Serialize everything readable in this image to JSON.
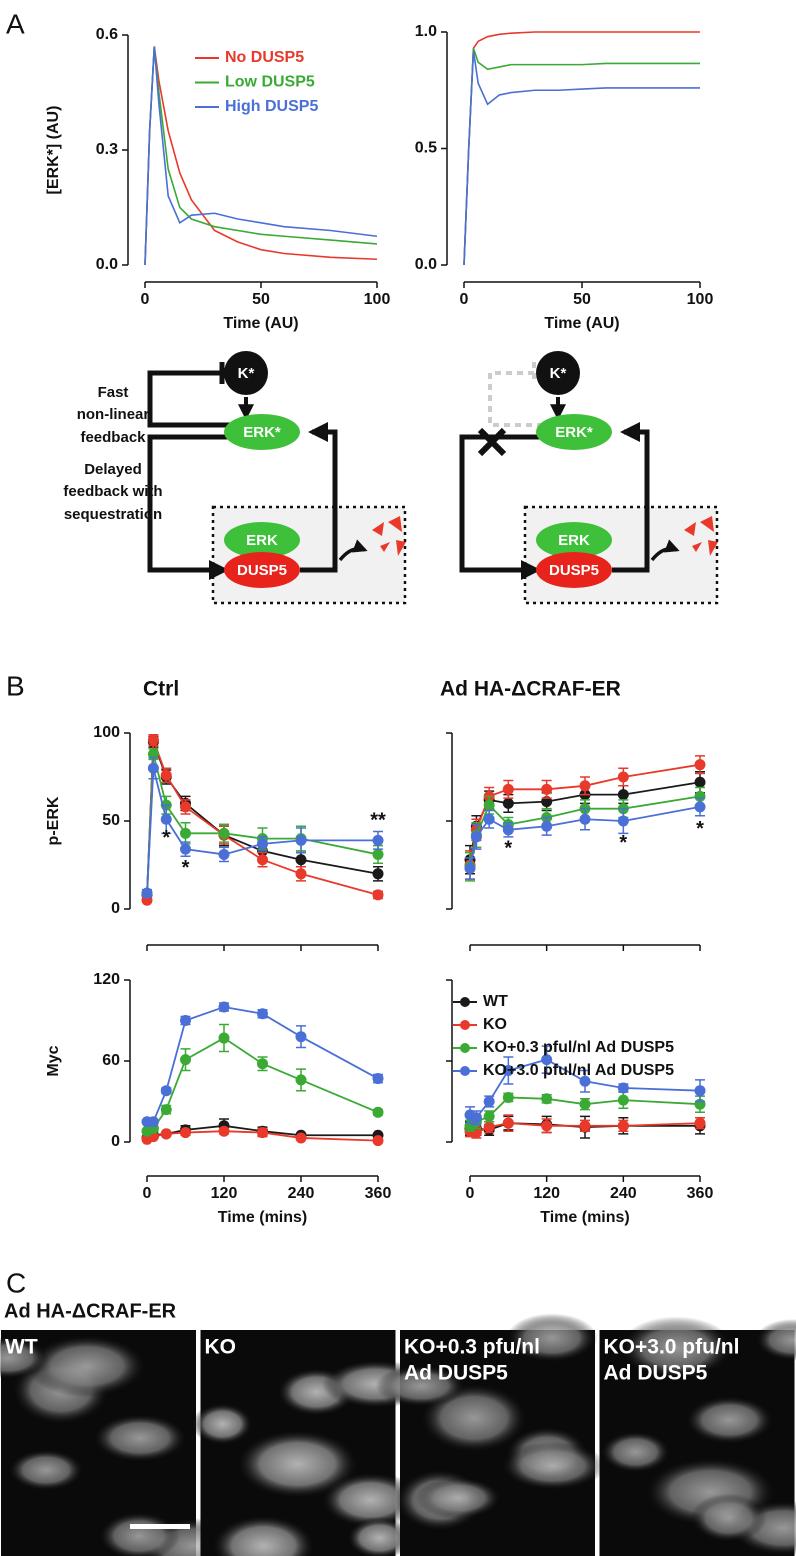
{
  "panels": {
    "a": "A",
    "b": "B",
    "c": "C"
  },
  "chart_data": [
    {
      "type": "line",
      "ylabel": "[ERK*] (AU)",
      "xlabel": "Time (AU)",
      "legend": "upper right",
      "x": [
        0,
        2,
        4,
        6,
        10,
        15,
        20,
        30,
        40,
        50,
        60,
        80,
        100
      ],
      "series": [
        {
          "name": "No DUSP5",
          "color": "#e8392a",
          "values": [
            0,
            0.35,
            0.57,
            0.48,
            0.35,
            0.24,
            0.17,
            0.09,
            0.06,
            0.04,
            0.03,
            0.02,
            0.015
          ]
        },
        {
          "name": "Low DUSP5",
          "color": "#3aaa35",
          "values": [
            0,
            0.35,
            0.57,
            0.45,
            0.25,
            0.15,
            0.12,
            0.1,
            0.09,
            0.08,
            0.075,
            0.065,
            0.055
          ]
        },
        {
          "name": "High DUSP5",
          "color": "#4a6fd6",
          "values": [
            0,
            0.35,
            0.57,
            0.42,
            0.18,
            0.11,
            0.13,
            0.135,
            0.12,
            0.11,
            0.1,
            0.09,
            0.075
          ]
        }
      ],
      "xlim": [
        0,
        100
      ],
      "xticks": [
        0,
        50,
        100
      ],
      "ylim": [
        0,
        0.6
      ],
      "yticks": [
        {
          "value": 0,
          "label": "0.0"
        },
        0.3,
        0.6
      ]
    },
    {
      "type": "line",
      "xlabel": "Time (AU)",
      "x": [
        0,
        2,
        4,
        6,
        10,
        15,
        20,
        30,
        40,
        50,
        60,
        80,
        100
      ],
      "series": [
        {
          "color": "#e8392a",
          "values": [
            0,
            0.5,
            0.93,
            0.96,
            0.98,
            0.99,
            0.995,
            1,
            1,
            1,
            1,
            1,
            1
          ]
        },
        {
          "color": "#3aaa35",
          "values": [
            0,
            0.5,
            0.93,
            0.87,
            0.84,
            0.85,
            0.86,
            0.86,
            0.86,
            0.86,
            0.865,
            0.865,
            0.865
          ]
        },
        {
          "color": "#4a6fd6",
          "values": [
            0,
            0.5,
            0.92,
            0.78,
            0.69,
            0.73,
            0.74,
            0.75,
            0.75,
            0.755,
            0.76,
            0.76,
            0.76
          ]
        }
      ],
      "xlim": [
        0,
        100
      ],
      "xticks": [
        0,
        50,
        100
      ],
      "ylim": [
        0,
        1
      ],
      "yticks": [
        {
          "value": 0,
          "label": "0.0"
        },
        0.5,
        {
          "value": 1,
          "label": "1.0"
        }
      ]
    },
    {
      "type": "line",
      "title": "Ctrl",
      "ylabel": "p-ERK",
      "markers": true,
      "xtick_labels": false,
      "x": [
        0,
        10,
        30,
        60,
        120,
        180,
        240,
        360
      ],
      "series": [
        {
          "color": "#1a1a1a",
          "values": [
            8,
            95,
            75,
            60,
            42,
            33,
            28,
            20
          ],
          "errors": [
            1,
            3,
            4,
            4,
            6,
            4,
            4,
            4
          ]
        },
        {
          "color": "#e8392a",
          "values": [
            5,
            96,
            76,
            58,
            42,
            28,
            20,
            8
          ],
          "errors": [
            1,
            3,
            4,
            4,
            5,
            4,
            4,
            2
          ]
        },
        {
          "color": "#3aaa35",
          "values": [
            9,
            88,
            59,
            43,
            43,
            40,
            40,
            31
          ],
          "errors": [
            1,
            3,
            5,
            6,
            5,
            6,
            7,
            5
          ]
        },
        {
          "color": "#4a6fd6",
          "values": [
            9,
            80,
            51,
            34,
            31,
            37,
            39,
            39
          ],
          "errors": [
            2,
            6,
            8,
            4,
            4,
            4,
            7,
            5
          ]
        }
      ],
      "annotations": [
        {
          "text": "*",
          "x": 30,
          "y": 40
        },
        {
          "text": "*",
          "x": 60,
          "y": 23
        },
        {
          "text": "**",
          "x": 360,
          "y": 50
        }
      ],
      "xlim": [
        0,
        360
      ],
      "xticks": [
        0,
        120,
        240,
        360
      ],
      "ylim": [
        0,
        100
      ],
      "yticks": [
        0,
        50,
        100
      ]
    },
    {
      "type": "line",
      "title": "Ad HA-ΔCRAF-ER",
      "markers": true,
      "xtick_labels": false,
      "ytick_labels": false,
      "x": [
        0,
        10,
        30,
        60,
        120,
        180,
        240,
        360
      ],
      "series": [
        {
          "color": "#1a1a1a",
          "values": [
            28,
            47,
            62,
            60,
            61,
            65,
            65,
            72
          ],
          "errors": [
            8,
            6,
            5,
            5,
            5,
            5,
            5,
            6
          ]
        },
        {
          "color": "#e8392a",
          "values": [
            25,
            45,
            64,
            68,
            68,
            70,
            75,
            82
          ],
          "errors": [
            8,
            6,
            5,
            5,
            5,
            5,
            5,
            5
          ]
        },
        {
          "color": "#3aaa35",
          "values": [
            24,
            42,
            59,
            48,
            52,
            57,
            57,
            64
          ],
          "errors": [
            8,
            7,
            5,
            4,
            5,
            5,
            5,
            5
          ]
        },
        {
          "color": "#4a6fd6",
          "values": [
            23,
            41,
            51,
            45,
            47,
            51,
            50,
            58
          ],
          "errors": [
            6,
            7,
            5,
            4,
            5,
            6,
            7,
            5
          ]
        }
      ],
      "annotations": [
        {
          "text": "*",
          "x": 60,
          "y": 34
        },
        {
          "text": "*",
          "x": 240,
          "y": 37
        },
        {
          "text": "*",
          "x": 360,
          "y": 45
        }
      ],
      "xlim": [
        0,
        360
      ],
      "xticks": [
        0,
        120,
        240,
        360
      ],
      "ylim": [
        0,
        100
      ],
      "yticks": [
        0,
        50,
        100
      ]
    },
    {
      "type": "line",
      "ylabel": "Myc",
      "xlabel": "Time (mins)",
      "markers": true,
      "x": [
        0,
        10,
        30,
        60,
        120,
        180,
        240,
        360
      ],
      "series": [
        {
          "color": "#1a1a1a",
          "values": [
            3,
            5,
            6,
            9,
            12,
            8,
            5,
            5
          ],
          "errors": [
            1,
            1,
            1,
            3,
            5,
            3,
            1,
            1
          ]
        },
        {
          "color": "#e8392a",
          "values": [
            2,
            4,
            6,
            7,
            8,
            7,
            3,
            1
          ],
          "errors": [
            1,
            1,
            1,
            2,
            2,
            3,
            1,
            1
          ]
        },
        {
          "color": "#3aaa35",
          "values": [
            8,
            10,
            24,
            61,
            77,
            58,
            46,
            22
          ],
          "errors": [
            1,
            2,
            3,
            8,
            10,
            5,
            8,
            2
          ]
        },
        {
          "color": "#4a6fd6",
          "values": [
            15,
            15,
            38,
            90,
            100,
            95,
            78,
            47
          ],
          "errors": [
            1,
            1,
            2,
            3,
            3,
            3,
            8,
            3
          ]
        }
      ],
      "xlim": [
        0,
        360
      ],
      "xticks": [
        0,
        120,
        240,
        360
      ],
      "ylim": [
        0,
        120
      ],
      "yticks": [
        0,
        60,
        120
      ]
    },
    {
      "type": "line",
      "xlabel": "Time (mins)",
      "markers": true,
      "ytick_labels": false,
      "legend": "upper left",
      "x": [
        0,
        10,
        30,
        60,
        120,
        180,
        240,
        360
      ],
      "series": [
        {
          "name": "WT",
          "color": "#1a1a1a",
          "values": [
            10,
            10,
            9,
            14,
            13,
            11,
            12,
            12
          ],
          "errors": [
            5,
            5,
            4,
            5,
            6,
            8,
            6,
            6
          ]
        },
        {
          "name": "KO",
          "color": "#e8392a",
          "values": [
            8,
            7,
            11,
            14,
            12,
            12,
            12,
            14
          ],
          "errors": [
            4,
            4,
            4,
            6,
            5,
            4,
            4,
            4
          ]
        },
        {
          "name": "KO+0.3 pful/nl Ad DUSP5",
          "color": "#3aaa35",
          "values": [
            12,
            15,
            19,
            33,
            32,
            28,
            31,
            28
          ],
          "errors": [
            4,
            5,
            4,
            3,
            3,
            4,
            6,
            6
          ]
        },
        {
          "name": "KO+3.0 pful/nl Ad DUSP5",
          "color": "#4a6fd6",
          "values": [
            20,
            18,
            30,
            53,
            61,
            45,
            40,
            38
          ],
          "errors": [
            6,
            5,
            4,
            10,
            10,
            8,
            3,
            8
          ]
        }
      ],
      "xlim": [
        0,
        360
      ],
      "xticks": [
        0,
        120,
        240,
        360
      ],
      "ylim": [
        0,
        120
      ],
      "yticks": [
        0,
        60,
        120
      ]
    }
  ],
  "diagram": {
    "left": {
      "kinase": "K*",
      "erk_active": "ERK*",
      "erk": "ERK",
      "dusp5": "DUSP5",
      "fast": [
        "Fast",
        "non-linear",
        "feedback"
      ],
      "delayed": [
        "Delayed",
        "feedback with",
        "sequestration"
      ]
    },
    "right": {
      "kinase": "K*",
      "erk_active": "ERK*",
      "erk": "ERK",
      "dusp5": "DUSP5"
    }
  },
  "micrographs": {
    "title": "Ad HA-ΔCRAF-ER",
    "images": [
      {
        "label": [
          "WT"
        ]
      },
      {
        "label": [
          "KO"
        ]
      },
      {
        "label": [
          "KO+0.3 pfu/nl",
          "Ad DUSP5"
        ]
      },
      {
        "label": [
          "KO+3.0 pfu/nl",
          "Ad DUSP5"
        ]
      }
    ]
  }
}
